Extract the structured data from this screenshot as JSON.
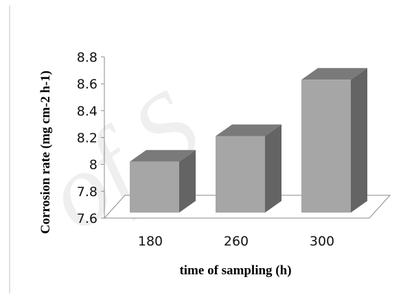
{
  "chart_data": {
    "type": "bar",
    "style": "3d-column",
    "categories": [
      "180",
      "260",
      "300"
    ],
    "values": [
      8.02,
      8.21,
      8.63
    ],
    "ylim": [
      7.6,
      8.8
    ],
    "ytick_values": [
      7.6,
      7.8,
      8,
      8.2,
      8.4,
      8.6,
      8.8
    ],
    "ytick_labels": [
      "7.6",
      "7.8",
      "8",
      "8.2",
      "8.4",
      "8.6",
      "8.8"
    ],
    "xlabel": "time of sampling (h)",
    "ylabel": "Corrosion rate (mg cm-2 h-1)",
    "title": "",
    "grid": false,
    "legend": "none",
    "colors": {
      "front": "#a6a6a6",
      "top": "#7a7a7a",
      "side": "#646464",
      "floor_stroke": "#8a8a8a",
      "axis_stroke": "#8a8a8a",
      "frame_stroke": "#bfbfbf"
    }
  },
  "watermark": {
    "text": "of S",
    "color": "#c8c8c8"
  }
}
